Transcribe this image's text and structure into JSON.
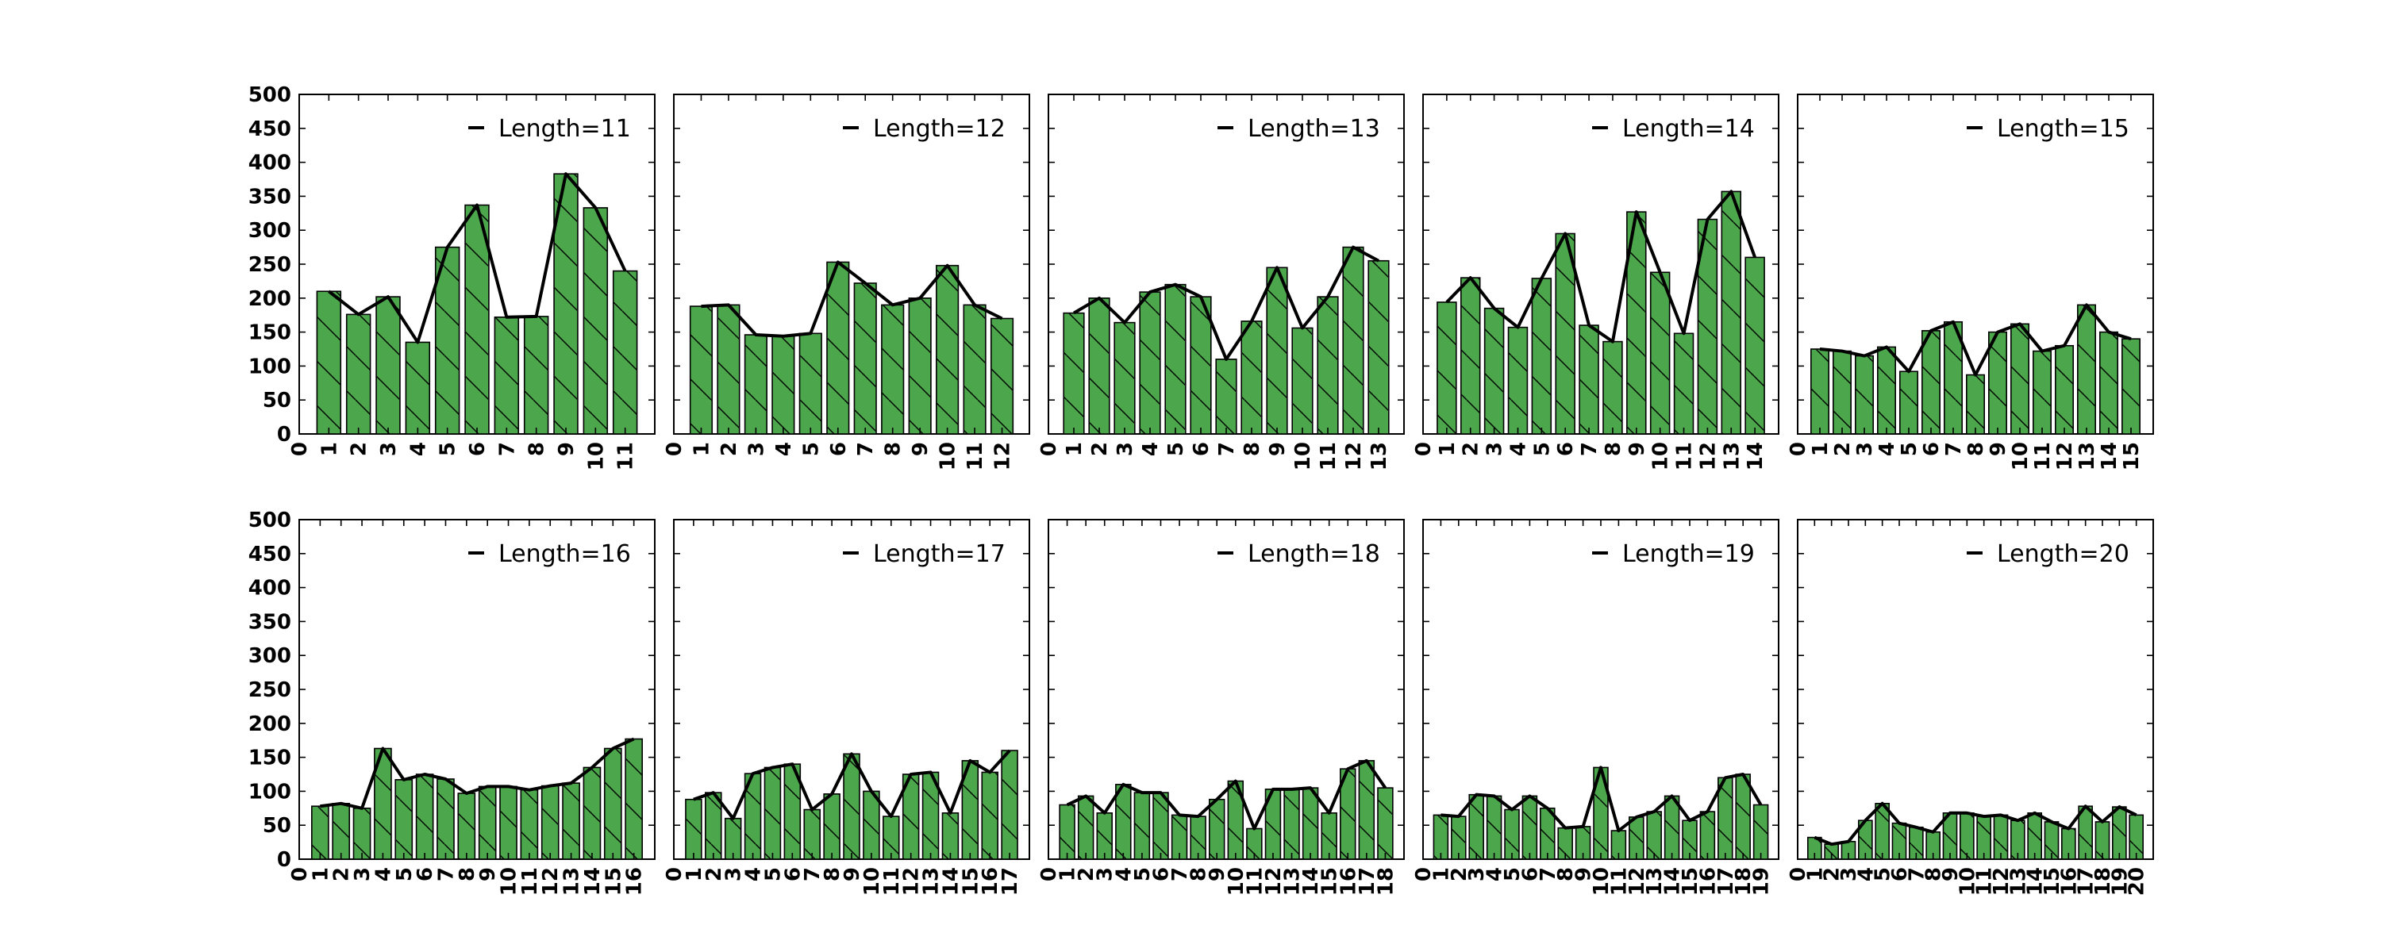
{
  "colors": {
    "bar_fill": "#4ca64c",
    "line": "#000000",
    "frame": "#000000"
  },
  "chart_data": [
    {
      "type": "bar",
      "series_label": "Length=11",
      "ylim": [
        0,
        500
      ],
      "grid": false,
      "legend_placement": "top-right",
      "x": [
        1,
        2,
        3,
        4,
        5,
        6,
        7,
        8,
        9,
        10,
        11
      ],
      "xticks": [
        "0",
        "1",
        "2",
        "3",
        "4",
        "5",
        "6",
        "7",
        "8",
        "9",
        "10",
        "11"
      ],
      "yticks": [
        "0",
        "50",
        "100",
        "150",
        "200",
        "250",
        "300",
        "350",
        "400",
        "450",
        "500"
      ],
      "values": [
        210,
        176,
        202,
        135,
        275,
        337,
        172,
        173,
        383,
        333,
        240
      ],
      "series": [
        {
          "name": "Length=11",
          "type": "line",
          "values": [
            210,
            176,
            202,
            135,
            275,
            337,
            172,
            173,
            383,
            333,
            240
          ]
        }
      ]
    },
    {
      "type": "bar",
      "series_label": "Length=12",
      "ylim": [
        0,
        500
      ],
      "grid": false,
      "legend_placement": "top-right",
      "x": [
        1,
        2,
        3,
        4,
        5,
        6,
        7,
        8,
        9,
        10,
        11,
        12
      ],
      "xticks": [
        "0",
        "1",
        "2",
        "3",
        "4",
        "5",
        "6",
        "7",
        "8",
        "9",
        "10",
        "11",
        "12"
      ],
      "yticks": [
        "0",
        "50",
        "100",
        "150",
        "200",
        "250",
        "300",
        "350",
        "400",
        "450",
        "500"
      ],
      "values": [
        188,
        190,
        146,
        144,
        148,
        253,
        222,
        190,
        200,
        248,
        190,
        170
      ],
      "series": [
        {
          "name": "Length=12",
          "type": "line",
          "values": [
            188,
            190,
            146,
            144,
            148,
            253,
            222,
            190,
            200,
            248,
            190,
            170
          ]
        }
      ]
    },
    {
      "type": "bar",
      "series_label": "Length=13",
      "ylim": [
        0,
        500
      ],
      "grid": false,
      "legend_placement": "top-right",
      "x": [
        1,
        2,
        3,
        4,
        5,
        6,
        7,
        8,
        9,
        10,
        11,
        12,
        13
      ],
      "xticks": [
        "0",
        "1",
        "2",
        "3",
        "4",
        "5",
        "6",
        "7",
        "8",
        "9",
        "10",
        "11",
        "12",
        "13"
      ],
      "yticks": [
        "0",
        "50",
        "100",
        "150",
        "200",
        "250",
        "300",
        "350",
        "400",
        "450",
        "500"
      ],
      "values": [
        178,
        200,
        164,
        209,
        220,
        202,
        110,
        166,
        245,
        156,
        202,
        275,
        255
      ],
      "series": [
        {
          "name": "Length=13",
          "type": "line",
          "values": [
            178,
            200,
            164,
            209,
            220,
            202,
            110,
            166,
            245,
            156,
            202,
            275,
            255
          ]
        }
      ]
    },
    {
      "type": "bar",
      "series_label": "Length=14",
      "ylim": [
        0,
        500
      ],
      "grid": false,
      "legend_placement": "top-right",
      "x": [
        1,
        2,
        3,
        4,
        5,
        6,
        7,
        8,
        9,
        10,
        11,
        12,
        13,
        14
      ],
      "xticks": [
        "0",
        "1",
        "2",
        "3",
        "4",
        "5",
        "6",
        "7",
        "8",
        "9",
        "10",
        "11",
        "12",
        "13",
        "14"
      ],
      "yticks": [
        "0",
        "50",
        "100",
        "150",
        "200",
        "250",
        "300",
        "350",
        "400",
        "450",
        "500"
      ],
      "values": [
        194,
        230,
        185,
        157,
        229,
        295,
        160,
        136,
        327,
        238,
        148,
        316,
        357,
        260
      ],
      "series": [
        {
          "name": "Length=14",
          "type": "line",
          "values": [
            194,
            230,
            185,
            157,
            229,
            295,
            160,
            136,
            327,
            238,
            148,
            316,
            357,
            260
          ]
        }
      ]
    },
    {
      "type": "bar",
      "series_label": "Length=15",
      "ylim": [
        0,
        500
      ],
      "grid": false,
      "legend_placement": "top-right",
      "x": [
        1,
        2,
        3,
        4,
        5,
        6,
        7,
        8,
        9,
        10,
        11,
        12,
        13,
        14,
        15
      ],
      "xticks": [
        "0",
        "1",
        "2",
        "3",
        "4",
        "5",
        "6",
        "7",
        "8",
        "9",
        "10",
        "11",
        "12",
        "13",
        "14",
        "15"
      ],
      "yticks": [
        "0",
        "50",
        "100",
        "150",
        "200",
        "250",
        "300",
        "350",
        "400",
        "450",
        "500"
      ],
      "values": [
        125,
        122,
        115,
        128,
        92,
        152,
        165,
        87,
        150,
        162,
        122,
        130,
        190,
        150,
        140
      ],
      "series": [
        {
          "name": "Length=15",
          "type": "line",
          "values": [
            125,
            122,
            115,
            128,
            92,
            152,
            165,
            87,
            150,
            162,
            122,
            130,
            190,
            150,
            140
          ]
        }
      ]
    },
    {
      "type": "bar",
      "series_label": "Length=16",
      "ylim": [
        0,
        500
      ],
      "grid": false,
      "legend_placement": "top-right",
      "x": [
        1,
        2,
        3,
        4,
        5,
        6,
        7,
        8,
        9,
        10,
        11,
        12,
        13,
        14,
        15,
        16
      ],
      "xticks": [
        "0",
        "1",
        "2",
        "3",
        "4",
        "5",
        "6",
        "7",
        "8",
        "9",
        "10",
        "11",
        "12",
        "13",
        "14",
        "15",
        "16"
      ],
      "yticks": [
        "0",
        "50",
        "100",
        "150",
        "200",
        "250",
        "300",
        "350",
        "400",
        "450",
        "500"
      ],
      "values": [
        78,
        82,
        75,
        163,
        117,
        125,
        118,
        97,
        107,
        107,
        102,
        108,
        112,
        135,
        163,
        177
      ],
      "series": [
        {
          "name": "Length=16",
          "type": "line",
          "values": [
            78,
            82,
            75,
            163,
            117,
            125,
            118,
            97,
            107,
            107,
            102,
            108,
            112,
            135,
            163,
            177
          ]
        }
      ]
    },
    {
      "type": "bar",
      "series_label": "Length=17",
      "ylim": [
        0,
        500
      ],
      "grid": false,
      "legend_placement": "top-right",
      "x": [
        1,
        2,
        3,
        4,
        5,
        6,
        7,
        8,
        9,
        10,
        11,
        12,
        13,
        14,
        15,
        16,
        17
      ],
      "xticks": [
        "0",
        "1",
        "2",
        "3",
        "4",
        "5",
        "6",
        "7",
        "8",
        "9",
        "10",
        "11",
        "12",
        "13",
        "14",
        "15",
        "16",
        "17"
      ],
      "yticks": [
        "0",
        "50",
        "100",
        "150",
        "200",
        "250",
        "300",
        "350",
        "400",
        "450",
        "500"
      ],
      "values": [
        88,
        98,
        60,
        126,
        135,
        140,
        73,
        96,
        155,
        100,
        63,
        125,
        128,
        68,
        145,
        128,
        160
      ],
      "series": [
        {
          "name": "Length=17",
          "type": "line",
          "values": [
            88,
            98,
            60,
            126,
            135,
            140,
            73,
            96,
            155,
            100,
            63,
            125,
            128,
            68,
            145,
            128,
            160
          ]
        }
      ]
    },
    {
      "type": "bar",
      "series_label": "Length=18",
      "ylim": [
        0,
        500
      ],
      "grid": false,
      "legend_placement": "top-right",
      "x": [
        1,
        2,
        3,
        4,
        5,
        6,
        7,
        8,
        9,
        10,
        11,
        12,
        13,
        14,
        15,
        16,
        17,
        18
      ],
      "xticks": [
        "0",
        "1",
        "2",
        "3",
        "4",
        "5",
        "6",
        "7",
        "8",
        "9",
        "10",
        "11",
        "12",
        "13",
        "14",
        "15",
        "16",
        "17",
        "18"
      ],
      "yticks": [
        "0",
        "50",
        "100",
        "150",
        "200",
        "250",
        "300",
        "350",
        "400",
        "450",
        "500"
      ],
      "values": [
        80,
        93,
        68,
        110,
        98,
        98,
        65,
        63,
        88,
        115,
        45,
        103,
        103,
        105,
        68,
        133,
        145,
        105
      ],
      "series": [
        {
          "name": "Length=18",
          "type": "line",
          "values": [
            80,
            93,
            68,
            110,
            98,
            98,
            65,
            63,
            88,
            115,
            45,
            103,
            103,
            105,
            68,
            133,
            145,
            105
          ]
        }
      ]
    },
    {
      "type": "bar",
      "series_label": "Length=19",
      "ylim": [
        0,
        500
      ],
      "grid": false,
      "legend_placement": "top-right",
      "x": [
        1,
        2,
        3,
        4,
        5,
        6,
        7,
        8,
        9,
        10,
        11,
        12,
        13,
        14,
        15,
        16,
        17,
        18,
        19
      ],
      "xticks": [
        "0",
        "1",
        "2",
        "3",
        "4",
        "5",
        "6",
        "7",
        "8",
        "9",
        "10",
        "11",
        "12",
        "13",
        "14",
        "15",
        "16",
        "17",
        "18",
        "19"
      ],
      "yticks": [
        "0",
        "50",
        "100",
        "150",
        "200",
        "250",
        "300",
        "350",
        "400",
        "450",
        "500"
      ],
      "values": [
        65,
        63,
        95,
        93,
        73,
        93,
        75,
        46,
        48,
        135,
        42,
        62,
        70,
        93,
        57,
        70,
        120,
        125,
        80
      ],
      "series": [
        {
          "name": "Length=19",
          "type": "line",
          "values": [
            65,
            63,
            95,
            93,
            73,
            93,
            75,
            46,
            48,
            135,
            42,
            62,
            70,
            93,
            57,
            70,
            120,
            125,
            80
          ]
        }
      ]
    },
    {
      "type": "bar",
      "series_label": "Length=20",
      "ylim": [
        0,
        500
      ],
      "grid": false,
      "legend_placement": "top-right",
      "x": [
        1,
        2,
        3,
        4,
        5,
        6,
        7,
        8,
        9,
        10,
        11,
        12,
        13,
        14,
        15,
        16,
        17,
        18,
        19,
        20
      ],
      "xticks": [
        "0",
        "1",
        "2",
        "3",
        "4",
        "5",
        "6",
        "7",
        "8",
        "9",
        "10",
        "11",
        "12",
        "13",
        "14",
        "15",
        "16",
        "17",
        "18",
        "19",
        "20"
      ],
      "yticks": [
        "0",
        "50",
        "100",
        "150",
        "200",
        "250",
        "300",
        "350",
        "400",
        "450",
        "500"
      ],
      "values": [
        32,
        22,
        26,
        57,
        82,
        53,
        47,
        40,
        68,
        68,
        63,
        65,
        57,
        68,
        55,
        45,
        78,
        55,
        77,
        65
      ],
      "series": [
        {
          "name": "Length=20",
          "type": "line",
          "values": [
            32,
            22,
            26,
            57,
            82,
            53,
            47,
            40,
            68,
            68,
            63,
            65,
            57,
            68,
            55,
            45,
            78,
            55,
            77,
            65
          ]
        }
      ]
    }
  ]
}
